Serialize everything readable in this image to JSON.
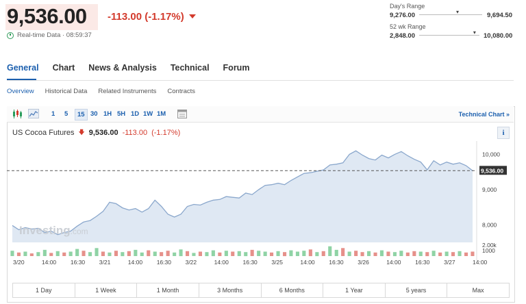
{
  "quote": {
    "price": "9,536.00",
    "change": "-113.00",
    "change_pct": "(-1.17%)",
    "realtime_label": "Real-time Data · 08:59:37",
    "color_down": "#d33a2c",
    "color_accent": "#1b5fae"
  },
  "ranges": {
    "day_label": "Day's Range",
    "day_low": "9,276.00",
    "day_high": "9,694.50",
    "day_level": 0.62,
    "week52_label": "52 wk Range",
    "week52_low": "2,848.00",
    "week52_high": "10,080.00",
    "week52_level": 0.93
  },
  "tabs": [
    "General",
    "Chart",
    "News & Analysis",
    "Technical",
    "Forum"
  ],
  "subnav": [
    "Overview",
    "Historical Data",
    "Related Instruments",
    "Contracts"
  ],
  "toolbar": {
    "candle_icon": "candlestick-icon",
    "line_icon": "area-chart-icon",
    "intervals": [
      "1",
      "5",
      "15",
      "30",
      "1H",
      "5H",
      "1D",
      "1W",
      "1M"
    ],
    "selected_interval": "15",
    "calendar_icon": "calendar-icon",
    "technical_chart_label": "Technical Chart »"
  },
  "instrument": {
    "name": "US Cocoa Futures",
    "price": "9,536.00",
    "change": "-113.00",
    "change_pct": "(-1.17%)",
    "info_label": "i"
  },
  "watermark": {
    "brand": "Investing",
    "suffix": ".com"
  },
  "chart_data": {
    "type": "area",
    "price_axis": {
      "ticks": [
        10000,
        9000,
        8000
      ],
      "tick_labels": [
        "10,000",
        "9,000",
        "8,000"
      ],
      "current_label": "9,536.00",
      "current_value": 9536
    },
    "volume_axis": {
      "tick_labels": [
        "2.00k",
        "1000"
      ]
    },
    "x_tick_labels": [
      "3/20",
      "14:00",
      "16:30",
      "3/21",
      "14:00",
      "16:30",
      "3/22",
      "14:00",
      "16:30",
      "3/25",
      "14:00",
      "16:30",
      "3/26",
      "14:00",
      "16:30",
      "3/27",
      "14:00"
    ],
    "series": [
      {
        "values": [
          7980,
          7860,
          7920,
          7880,
          7900,
          7780,
          7820,
          7720,
          7780,
          7820,
          7960,
          8080,
          8120,
          8240,
          8380,
          8640,
          8600,
          8480,
          8420,
          8460,
          8360,
          8460,
          8700,
          8520,
          8300,
          8220,
          8300,
          8520,
          8580,
          8560,
          8640,
          8700,
          8720,
          8800,
          8780,
          8760,
          8900,
          8860,
          9000,
          9120,
          9140,
          9180,
          9140,
          9260,
          9360,
          9460,
          9480,
          9520,
          9560,
          9700,
          9720,
          9760,
          10000,
          10100,
          9980,
          9880,
          9840,
          9980,
          9900,
          10000,
          10080,
          9960,
          9860,
          9780,
          9560,
          9820,
          9700,
          9780,
          9720,
          9760,
          9680,
          9536
        ]
      }
    ],
    "volume": [
      12,
      8,
      10,
      6,
      9,
      14,
      7,
      11,
      8,
      10,
      16,
      12,
      9,
      18,
      10,
      8,
      12,
      9,
      11,
      14,
      8,
      13,
      10,
      9,
      12,
      8,
      15,
      11,
      7,
      10,
      9,
      13,
      8,
      12,
      10,
      11,
      9,
      14,
      12,
      10,
      8,
      11,
      9,
      13,
      10,
      12,
      15,
      9,
      11,
      22,
      14,
      18,
      10,
      12,
      9,
      11,
      8,
      13,
      10,
      9,
      12,
      8,
      11,
      10,
      9,
      12,
      8,
      10,
      9,
      11,
      8,
      10
    ],
    "volume_dir": [
      1,
      -1,
      1,
      -1,
      1,
      1,
      -1,
      1,
      -1,
      1,
      1,
      -1,
      1,
      1,
      -1,
      1,
      -1,
      1,
      -1,
      1,
      1,
      -1,
      1,
      -1,
      -1,
      1,
      1,
      -1,
      1,
      -1,
      1,
      1,
      -1,
      1,
      -1,
      1,
      1,
      -1,
      1,
      1,
      -1,
      1,
      -1,
      1,
      1,
      1,
      -1,
      1,
      -1,
      1,
      1,
      -1,
      1,
      -1,
      -1,
      1,
      -1,
      1,
      -1,
      1,
      1,
      -1,
      -1,
      1,
      -1,
      1,
      -1,
      1,
      -1,
      1,
      -1,
      -1
    ]
  },
  "periods": [
    "1 Day",
    "1 Week",
    "1 Month",
    "3 Months",
    "6 Months",
    "1 Year",
    "5 years",
    "Max"
  ]
}
